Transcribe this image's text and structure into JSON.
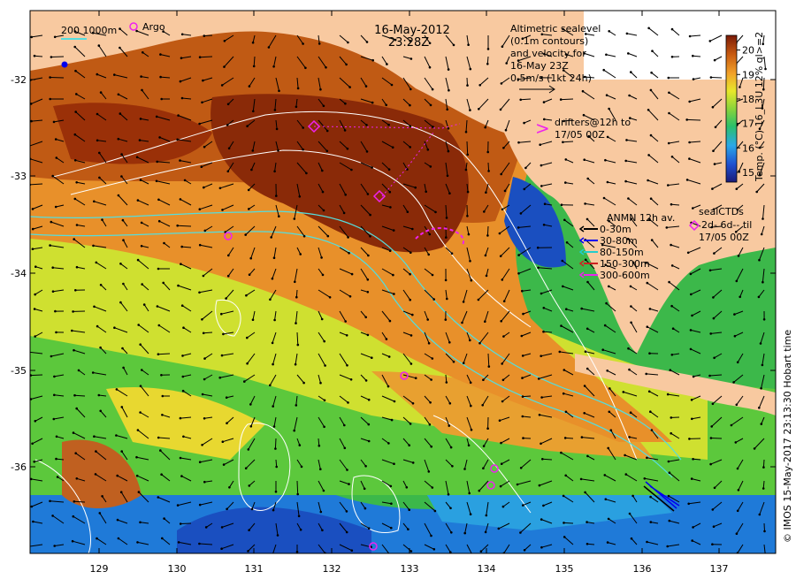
{
  "map": {
    "title_date": "16-May-2012",
    "title_time": "23:28Z",
    "argo_label": "Argo",
    "scale_label": "200  1000m",
    "altimetry_lines": [
      "Altimetric sealevel",
      "(0.1m contours)",
      "and velocity for",
      "16-May 23Z",
      "0.5m/s (1kt 24h)"
    ],
    "drifters_lines": [
      "drifters@12h to",
      "17/05 00Z"
    ],
    "drifter_symbol": ">",
    "anmn_title": "ANMN 12h av.",
    "anmn_legend": [
      {
        "label": "0-30m",
        "color": "#000000"
      },
      {
        "label": "30-80m",
        "color": "#0000ee"
      },
      {
        "label": "80-150m",
        "color": "#22cccc"
      },
      {
        "label": "150-300m",
        "color": "#cc2222"
      },
      {
        "label": "300-600m",
        "color": "#ee22ee"
      }
    ],
    "seal_lines": [
      "sealCTDs",
      "2d- 6d-- til",
      "17/05 00Z"
    ],
    "colorbar_label": "Temp. (°C) 16_L3U 12% ql>=2",
    "colorbar_ticks": [
      "15",
      "16",
      "17",
      "18",
      "19",
      "20"
    ],
    "colorbar_range": [
      14.6,
      20.6
    ],
    "credit": "© IMOS 15-May-2017 23:13:30 Hobart time",
    "lat_ticks": [
      "-32",
      "-33",
      "-34",
      "-35",
      "-36"
    ],
    "lon_ticks": [
      "129",
      "130",
      "131",
      "132",
      "133",
      "134",
      "135",
      "136",
      "137"
    ],
    "colors": {
      "land": "#f8c9a0",
      "argo": "#ee22ee",
      "contour": "#ffffff",
      "cyan_isobath": "#55dddd"
    }
  }
}
